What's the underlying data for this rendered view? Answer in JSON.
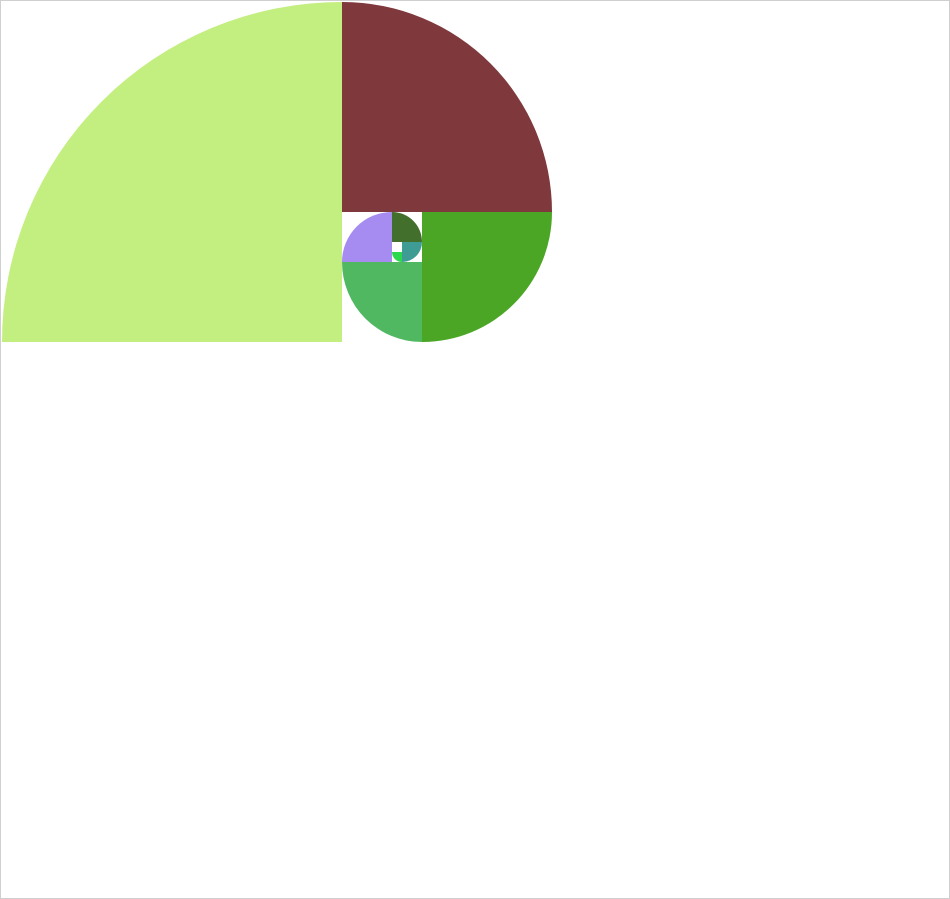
{
  "diagram": {
    "kind": "fibonacci-spiral-quarter-circles",
    "sequence": [
      1,
      1,
      2,
      3,
      5,
      8,
      13,
      21,
      34
    ],
    "sectors": [
      {
        "label": "",
        "value": 34,
        "color": "#c3ee80"
      },
      {
        "label": "",
        "value": 21,
        "color": "#7f383c"
      },
      {
        "label": "",
        "value": 13,
        "color": "#4ba625"
      },
      {
        "label": "",
        "value": 8,
        "color": "#51b862"
      },
      {
        "label": "",
        "value": 5,
        "color": "#a68bf0"
      },
      {
        "label": "",
        "value": 3,
        "color": "#426f2c"
      },
      {
        "label": "",
        "value": 2,
        "color": "#3f9c94"
      },
      {
        "label": "",
        "value": 1,
        "color": "#2ed84d"
      },
      {
        "label": "",
        "value": 1,
        "color": "#ffffff"
      }
    ]
  }
}
